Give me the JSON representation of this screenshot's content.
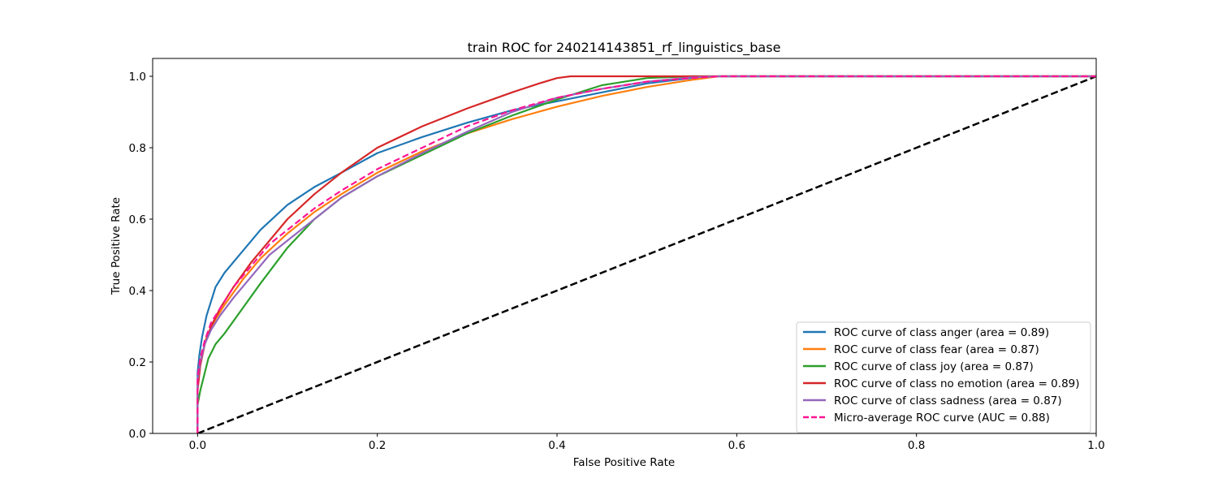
{
  "chart_data": {
    "type": "line",
    "title": "train ROC for 240214143851_rf_linguistics_base",
    "xlabel": "False Positive Rate",
    "ylabel": "True Positive Rate",
    "xlim": [
      -0.05,
      1.0
    ],
    "ylim": [
      0.0,
      1.05
    ],
    "x_ticks": [
      0.0,
      0.2,
      0.4,
      0.6,
      0.8,
      1.0
    ],
    "x_tick_labels": [
      "0.0",
      "0.2",
      "0.4",
      "0.6",
      "0.8",
      "1.0"
    ],
    "y_ticks": [
      0.0,
      0.2,
      0.4,
      0.6,
      0.8,
      1.0
    ],
    "y_tick_labels": [
      "0.0",
      "0.2",
      "0.4",
      "0.6",
      "0.8",
      "1.0"
    ],
    "grid": false,
    "legend_position": "lower-right",
    "series": [
      {
        "name": "ROC curve of class anger (area = 0.89)",
        "color": "#1f77b4",
        "dash": "solid",
        "x": [
          0,
          0,
          0.002,
          0.005,
          0.01,
          0.02,
          0.03,
          0.05,
          0.07,
          0.1,
          0.13,
          0.16,
          0.2,
          0.25,
          0.3,
          0.35,
          0.4,
          0.45,
          0.5,
          0.55,
          0.58,
          0.6,
          1.0
        ],
        "y": [
          0,
          0.17,
          0.22,
          0.27,
          0.33,
          0.41,
          0.45,
          0.51,
          0.57,
          0.64,
          0.69,
          0.73,
          0.785,
          0.83,
          0.87,
          0.905,
          0.93,
          0.955,
          0.98,
          0.995,
          1.0,
          1.0,
          1.0
        ]
      },
      {
        "name": "ROC curve of class fear (area = 0.87)",
        "color": "#ff7f0e",
        "dash": "solid",
        "x": [
          0,
          0,
          0.003,
          0.01,
          0.02,
          0.03,
          0.05,
          0.07,
          0.1,
          0.13,
          0.16,
          0.2,
          0.25,
          0.3,
          0.35,
          0.4,
          0.45,
          0.5,
          0.55,
          0.58,
          0.6,
          1.0
        ],
        "y": [
          0,
          0.14,
          0.2,
          0.27,
          0.32,
          0.36,
          0.43,
          0.49,
          0.56,
          0.62,
          0.67,
          0.73,
          0.79,
          0.84,
          0.88,
          0.915,
          0.945,
          0.97,
          0.99,
          1.0,
          1.0,
          1.0
        ]
      },
      {
        "name": "ROC curve of class joy (area = 0.87)",
        "color": "#2ca02c",
        "dash": "solid",
        "x": [
          0,
          0,
          0.003,
          0.007,
          0.012,
          0.02,
          0.03,
          0.05,
          0.07,
          0.1,
          0.13,
          0.16,
          0.2,
          0.25,
          0.3,
          0.35,
          0.4,
          0.45,
          0.5,
          0.55,
          0.58,
          0.6,
          1.0
        ],
        "y": [
          0,
          0.08,
          0.12,
          0.16,
          0.21,
          0.25,
          0.28,
          0.35,
          0.42,
          0.52,
          0.6,
          0.66,
          0.72,
          0.78,
          0.84,
          0.89,
          0.935,
          0.975,
          0.995,
          1.0,
          1.0,
          1.0,
          1.0
        ]
      },
      {
        "name": "ROC curve of class no emotion (area = 0.89)",
        "color": "#d62728",
        "dash": "solid",
        "x": [
          0,
          0,
          0.003,
          0.008,
          0.015,
          0.025,
          0.04,
          0.06,
          0.08,
          0.1,
          0.13,
          0.16,
          0.2,
          0.25,
          0.3,
          0.35,
          0.38,
          0.4,
          0.415,
          1.0
        ],
        "y": [
          0,
          0.12,
          0.19,
          0.25,
          0.3,
          0.35,
          0.41,
          0.48,
          0.54,
          0.6,
          0.67,
          0.73,
          0.8,
          0.86,
          0.91,
          0.955,
          0.98,
          0.995,
          1.0,
          1.0
        ]
      },
      {
        "name": "ROC curve of class sadness (area = 0.87)",
        "color": "#9467bd",
        "dash": "solid",
        "x": [
          0,
          0,
          0.003,
          0.008,
          0.015,
          0.025,
          0.04,
          0.06,
          0.08,
          0.1,
          0.13,
          0.16,
          0.2,
          0.25,
          0.3,
          0.35,
          0.4,
          0.45,
          0.5,
          0.55,
          0.58,
          0.6,
          1.0
        ],
        "y": [
          0,
          0.15,
          0.2,
          0.25,
          0.29,
          0.33,
          0.38,
          0.44,
          0.5,
          0.54,
          0.6,
          0.66,
          0.72,
          0.785,
          0.845,
          0.9,
          0.94,
          0.965,
          0.985,
          0.997,
          1.0,
          1.0,
          1.0
        ]
      },
      {
        "name": "Micro-average ROC curve (AUC = 0.88)",
        "color": "#ff1493",
        "dash": "dashed",
        "x": [
          0,
          0,
          0.003,
          0.008,
          0.015,
          0.025,
          0.04,
          0.06,
          0.08,
          0.1,
          0.13,
          0.16,
          0.2,
          0.25,
          0.3,
          0.35,
          0.4,
          0.45,
          0.5,
          0.55,
          0.58,
          0.6,
          1.0
        ],
        "y": [
          0,
          0.16,
          0.21,
          0.26,
          0.31,
          0.35,
          0.41,
          0.47,
          0.53,
          0.57,
          0.63,
          0.68,
          0.74,
          0.8,
          0.86,
          0.905,
          0.94,
          0.965,
          0.985,
          0.995,
          1.0,
          1.0,
          1.0
        ]
      }
    ],
    "reference_line": {
      "color": "#000000",
      "dash": "dashed",
      "x": [
        0,
        1
      ],
      "y": [
        0,
        1
      ]
    }
  }
}
